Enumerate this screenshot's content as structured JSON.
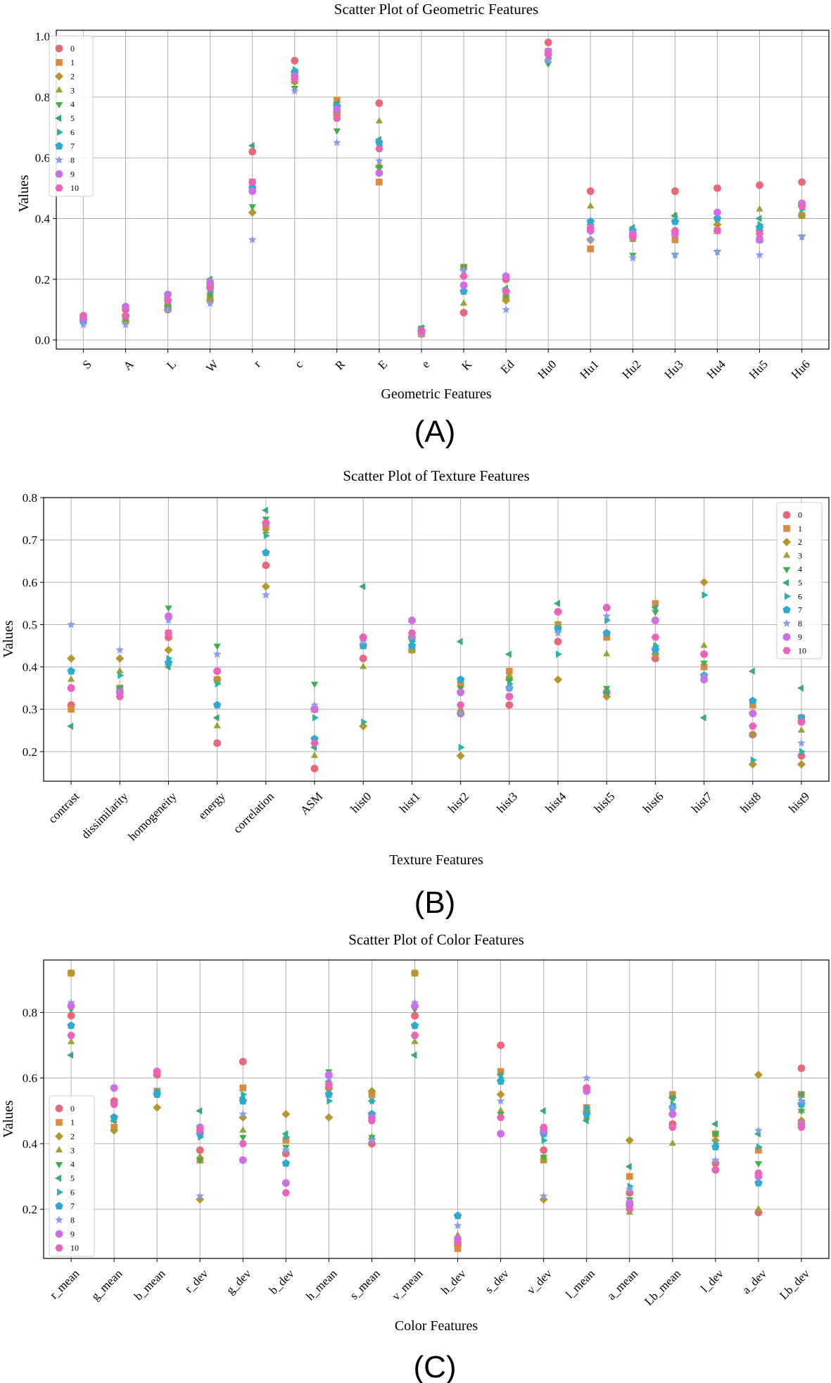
{
  "figure": {
    "series_names": [
      "0",
      "1",
      "2",
      "3",
      "4",
      "5",
      "6",
      "7",
      "8",
      "9",
      "10"
    ],
    "series_colors": [
      "#e8677a",
      "#de8a3e",
      "#b8962e",
      "#9aa137",
      "#3fae4c",
      "#3aaa7e",
      "#2ab3a8",
      "#2eaad0",
      "#8a9af0",
      "#cc6ee6",
      "#ec62bb"
    ],
    "series_markers": [
      "circle",
      "square",
      "diamond",
      "triangle-up",
      "triangle-down",
      "triangle-left",
      "triangle-right",
      "pentagon",
      "star",
      "octagon",
      "hexagon"
    ]
  },
  "chart_data": [
    {
      "type": "scatter",
      "panel_label": "(A)",
      "title": "Scatter Plot of Geometric Features",
      "xlabel": "Geometric Features",
      "ylabel": "Values",
      "ylim": [
        -0.03,
        1.02
      ],
      "yticks": [
        0.0,
        0.2,
        0.4,
        0.6,
        0.8,
        1.0
      ],
      "ytick_labels": [
        "0.0",
        "0.2",
        "0.4",
        "0.6",
        "0.8",
        "1.0"
      ],
      "tick_rotation": 45,
      "grid": true,
      "legend_position": "top-left",
      "categories": [
        "S",
        "A",
        "L",
        "W",
        "r",
        "c",
        "R",
        "E",
        "e",
        "K",
        "Ed",
        "Hu0",
        "Hu1",
        "Hu2",
        "Hu3",
        "Hu4",
        "Hu5",
        "Hu6"
      ],
      "series": [
        {
          "name": "0",
          "values": [
            0.08,
            0.1,
            0.1,
            0.18,
            0.62,
            0.92,
            0.75,
            0.78,
            0.02,
            0.09,
            0.2,
            0.98,
            0.49,
            0.35,
            0.49,
            0.5,
            0.51,
            0.52
          ]
        },
        {
          "name": "1",
          "values": [
            0.07,
            0.07,
            0.12,
            0.14,
            0.52,
            0.88,
            0.79,
            0.52,
            0.02,
            0.24,
            0.14,
            0.95,
            0.3,
            0.34,
            0.33,
            0.36,
            0.33,
            0.41
          ]
        },
        {
          "name": "2",
          "values": [
            0.07,
            0.06,
            0.11,
            0.13,
            0.42,
            0.85,
            0.74,
            0.57,
            0.03,
            0.21,
            0.13,
            0.94,
            0.33,
            0.34,
            0.36,
            0.38,
            0.36,
            0.41
          ]
        },
        {
          "name": "3",
          "values": [
            0.06,
            0.07,
            0.1,
            0.14,
            0.51,
            0.85,
            0.73,
            0.72,
            0.03,
            0.12,
            0.14,
            0.93,
            0.44,
            0.33,
            0.41,
            0.42,
            0.43,
            0.41
          ]
        },
        {
          "name": "4",
          "values": [
            0.06,
            0.07,
            0.11,
            0.15,
            0.44,
            0.83,
            0.69,
            0.57,
            0.04,
            0.24,
            0.15,
            0.91,
            0.36,
            0.28,
            0.28,
            0.29,
            0.37,
            0.34
          ]
        },
        {
          "name": "5",
          "values": [
            0.07,
            0.08,
            0.14,
            0.2,
            0.64,
            0.87,
            0.78,
            0.66,
            0.04,
            0.23,
            0.17,
            0.92,
            0.38,
            0.37,
            0.41,
            0.42,
            0.4,
            0.45
          ]
        },
        {
          "name": "6",
          "values": [
            0.07,
            0.08,
            0.13,
            0.16,
            0.5,
            0.89,
            0.77,
            0.64,
            0.03,
            0.18,
            0.16,
            0.93,
            0.38,
            0.35,
            0.39,
            0.4,
            0.38,
            0.43
          ]
        },
        {
          "name": "7",
          "values": [
            0.06,
            0.08,
            0.13,
            0.17,
            0.5,
            0.88,
            0.77,
            0.65,
            0.03,
            0.16,
            0.16,
            0.95,
            0.39,
            0.36,
            0.39,
            0.4,
            0.37,
            0.44
          ]
        },
        {
          "name": "8",
          "values": [
            0.05,
            0.05,
            0.1,
            0.12,
            0.33,
            0.82,
            0.65,
            0.59,
            0.02,
            0.23,
            0.1,
            0.92,
            0.33,
            0.27,
            0.28,
            0.29,
            0.28,
            0.34
          ]
        },
        {
          "name": "9",
          "values": [
            0.07,
            0.11,
            0.15,
            0.19,
            0.49,
            0.87,
            0.76,
            0.55,
            0.03,
            0.18,
            0.21,
            0.95,
            0.36,
            0.35,
            0.35,
            0.42,
            0.33,
            0.45
          ]
        },
        {
          "name": "10",
          "values": [
            0.08,
            0.08,
            0.13,
            0.17,
            0.52,
            0.86,
            0.73,
            0.63,
            0.03,
            0.21,
            0.16,
            0.94,
            0.37,
            0.34,
            0.36,
            0.36,
            0.35,
            0.44
          ]
        }
      ]
    },
    {
      "type": "scatter",
      "panel_label": "(B)",
      "title": "Scatter Plot of Texture Features",
      "xlabel": "Texture Features",
      "ylabel": "Values",
      "ylim": [
        0.13,
        0.8
      ],
      "yticks": [
        0.2,
        0.3,
        0.4,
        0.5,
        0.6,
        0.7,
        0.8
      ],
      "ytick_labels": [
        "0.2",
        "0.3",
        "0.4",
        "0.5",
        "0.6",
        "0.7",
        "0.8"
      ],
      "tick_rotation": 45,
      "grid": true,
      "legend_position": "top-right",
      "categories": [
        "contrast",
        "dissimilarity",
        "homogeneity",
        "energy",
        "correlation",
        "ASM",
        "hist0",
        "hist1",
        "hist2",
        "hist3",
        "hist4",
        "hist5",
        "hist6",
        "hist7",
        "hist8",
        "hist9"
      ],
      "series": [
        {
          "name": "0",
          "values": [
            0.31,
            0.34,
            0.47,
            0.22,
            0.64,
            0.16,
            0.42,
            0.47,
            0.29,
            0.31,
            0.46,
            0.34,
            0.42,
            0.43,
            0.24,
            0.19
          ]
        },
        {
          "name": "1",
          "values": [
            0.3,
            0.35,
            0.48,
            0.37,
            0.73,
            0.3,
            0.45,
            0.44,
            0.36,
            0.39,
            0.5,
            0.47,
            0.55,
            0.4,
            0.31,
            0.28
          ]
        },
        {
          "name": "2",
          "values": [
            0.42,
            0.42,
            0.44,
            0.37,
            0.59,
            0.3,
            0.26,
            0.44,
            0.19,
            0.37,
            0.37,
            0.33,
            0.43,
            0.6,
            0.17,
            0.17
          ]
        },
        {
          "name": "3",
          "values": [
            0.37,
            0.39,
            0.41,
            0.26,
            0.72,
            0.19,
            0.4,
            0.44,
            0.3,
            0.38,
            0.5,
            0.43,
            0.45,
            0.45,
            0.24,
            0.25
          ]
        },
        {
          "name": "4",
          "values": [
            0.39,
            0.35,
            0.54,
            0.45,
            0.75,
            0.36,
            0.45,
            0.46,
            0.35,
            0.37,
            0.53,
            0.35,
            0.53,
            0.41,
            0.29,
            0.27
          ]
        },
        {
          "name": "5",
          "values": [
            0.26,
            0.35,
            0.4,
            0.28,
            0.77,
            0.21,
            0.59,
            0.47,
            0.46,
            0.43,
            0.55,
            0.34,
            0.54,
            0.28,
            0.39,
            0.35
          ]
        },
        {
          "name": "6",
          "values": [
            0.39,
            0.38,
            0.42,
            0.36,
            0.71,
            0.28,
            0.27,
            0.46,
            0.21,
            0.36,
            0.43,
            0.51,
            0.45,
            0.57,
            0.18,
            0.2
          ]
        },
        {
          "name": "7",
          "values": [
            0.39,
            0.34,
            0.41,
            0.31,
            0.67,
            0.23,
            0.45,
            0.45,
            0.37,
            0.35,
            0.49,
            0.48,
            0.44,
            0.38,
            0.32,
            0.28
          ]
        },
        {
          "name": "8",
          "values": [
            0.5,
            0.44,
            0.51,
            0.43,
            0.57,
            0.31,
            0.46,
            0.47,
            0.29,
            0.35,
            0.48,
            0.52,
            0.51,
            0.38,
            0.26,
            0.22
          ]
        },
        {
          "name": "9",
          "values": [
            0.35,
            0.34,
            0.52,
            0.39,
            0.74,
            0.3,
            0.47,
            0.51,
            0.34,
            0.33,
            0.53,
            0.54,
            0.51,
            0.37,
            0.29,
            0.27
          ]
        },
        {
          "name": "10",
          "values": [
            0.35,
            0.33,
            0.48,
            0.39,
            0.74,
            0.22,
            0.47,
            0.48,
            0.31,
            0.33,
            0.53,
            0.54,
            0.47,
            0.43,
            0.26,
            0.27
          ]
        }
      ]
    },
    {
      "type": "scatter",
      "panel_label": "(C)",
      "title": "Scatter Plot of Color Features",
      "xlabel": "Color Features",
      "ylabel": "Values",
      "ylim": [
        0.05,
        0.96
      ],
      "yticks": [
        0.2,
        0.4,
        0.6,
        0.8
      ],
      "ytick_labels": [
        "0.2",
        "0.4",
        "0.6",
        "0.8"
      ],
      "tick_rotation": 45,
      "grid": true,
      "legend_position": "center-left",
      "categories": [
        "r_mean",
        "g_mean",
        "b_mean",
        "r_dev",
        "g_dev",
        "b_dev",
        "h_mean",
        "s_mean",
        "v_mean",
        "h_dev",
        "s_dev",
        "v_dev",
        "l_mean",
        "a_mean",
        "Lb_mean",
        "l_dev",
        "a_dev",
        "Lb_dev"
      ],
      "series": [
        {
          "name": "0",
          "values": [
            0.79,
            0.53,
            0.61,
            0.38,
            0.65,
            0.37,
            0.57,
            0.4,
            0.79,
            0.09,
            0.7,
            0.38,
            0.57,
            0.25,
            0.46,
            0.34,
            0.19,
            0.63
          ]
        },
        {
          "name": "1",
          "values": [
            0.92,
            0.45,
            0.56,
            0.35,
            0.57,
            0.41,
            0.58,
            0.55,
            0.92,
            0.08,
            0.62,
            0.35,
            0.51,
            0.3,
            0.55,
            0.43,
            0.38,
            0.55
          ]
        },
        {
          "name": "2",
          "values": [
            0.92,
            0.44,
            0.51,
            0.23,
            0.48,
            0.49,
            0.48,
            0.56,
            0.92,
            0.1,
            0.55,
            0.23,
            0.5,
            0.41,
            0.54,
            0.41,
            0.61,
            0.47
          ]
        },
        {
          "name": "3",
          "values": [
            0.71,
            0.47,
            0.55,
            0.36,
            0.44,
            0.38,
            0.56,
            0.42,
            0.71,
            0.12,
            0.5,
            0.35,
            0.48,
            0.19,
            0.4,
            0.43,
            0.2,
            0.5
          ]
        },
        {
          "name": "4",
          "values": [
            0.81,
            0.48,
            0.55,
            0.35,
            0.42,
            0.39,
            0.62,
            0.42,
            0.81,
            0.11,
            0.49,
            0.36,
            0.49,
            0.23,
            0.54,
            0.43,
            0.34,
            0.5
          ]
        },
        {
          "name": "5",
          "values": [
            0.67,
            0.47,
            0.55,
            0.5,
            0.54,
            0.43,
            0.59,
            0.53,
            0.67,
            0.18,
            0.61,
            0.5,
            0.47,
            0.33,
            0.54,
            0.46,
            0.43,
            0.55
          ]
        },
        {
          "name": "6",
          "values": [
            0.82,
            0.48,
            0.56,
            0.42,
            0.55,
            0.42,
            0.53,
            0.53,
            0.82,
            0.18,
            0.6,
            0.41,
            0.51,
            0.27,
            0.52,
            0.4,
            0.39,
            0.53
          ]
        },
        {
          "name": "7",
          "values": [
            0.76,
            0.48,
            0.55,
            0.43,
            0.53,
            0.34,
            0.55,
            0.49,
            0.76,
            0.18,
            0.59,
            0.43,
            0.49,
            0.21,
            0.51,
            0.39,
            0.28,
            0.52
          ]
        },
        {
          "name": "8",
          "values": [
            0.83,
            0.52,
            0.62,
            0.24,
            0.49,
            0.38,
            0.6,
            0.41,
            0.83,
            0.15,
            0.53,
            0.24,
            0.6,
            0.26,
            0.51,
            0.35,
            0.44,
            0.53
          ]
        },
        {
          "name": "9",
          "values": [
            0.82,
            0.57,
            0.62,
            0.45,
            0.35,
            0.28,
            0.61,
            0.48,
            0.82,
            0.11,
            0.43,
            0.44,
            0.56,
            0.22,
            0.49,
            0.32,
            0.3,
            0.46
          ]
        },
        {
          "name": "10",
          "values": [
            0.73,
            0.52,
            0.62,
            0.44,
            0.4,
            0.25,
            0.58,
            0.47,
            0.73,
            0.1,
            0.48,
            0.45,
            0.57,
            0.2,
            0.45,
            0.32,
            0.31,
            0.45
          ]
        }
      ]
    }
  ]
}
